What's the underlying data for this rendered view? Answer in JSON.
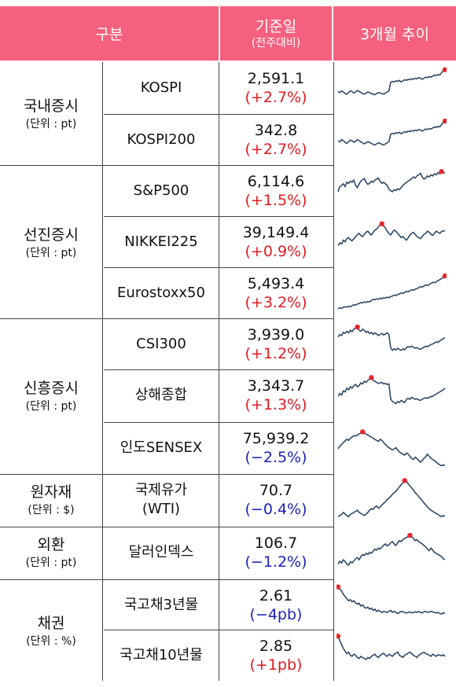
{
  "header": {
    "category": "구분",
    "base_date": "기준일",
    "base_date_sub": "(전주대비)",
    "trend": "3개월 추이"
  },
  "colors": {
    "header_bg": "#f4607e",
    "up": "#e0191f",
    "down": "#1d22b8",
    "sparkline": "#2e4a66",
    "marker": "#e8262c"
  },
  "groups": [
    {
      "name": "국내증시",
      "unit": "(단위 : pt)",
      "rows": [
        {
          "name": "KOSPI",
          "value": "2,591.1",
          "change": "(+2.7%)",
          "dir": "up",
          "trend": [
            35,
            33,
            36,
            34,
            31,
            30,
            33,
            36,
            35,
            32,
            34,
            37,
            35,
            33,
            31,
            30,
            32,
            34,
            33,
            31,
            30,
            29,
            31,
            33,
            32,
            31,
            30,
            32,
            34,
            36,
            52,
            54,
            53,
            55,
            54,
            56,
            53,
            55,
            57,
            56,
            58,
            57,
            59,
            58,
            60,
            59,
            61,
            60,
            58,
            60,
            62,
            61,
            63,
            62,
            64,
            66,
            65,
            67,
            66,
            70,
            74,
            76
          ]
        },
        {
          "name": "KOSPI200",
          "value": "342.8",
          "change": "(+2.7%)",
          "dir": "up",
          "trend": [
            40,
            38,
            42,
            40,
            37,
            35,
            38,
            41,
            40,
            37,
            39,
            42,
            40,
            38,
            36,
            34,
            36,
            38,
            37,
            35,
            33,
            32,
            34,
            36,
            35,
            33,
            32,
            34,
            36,
            38,
            52,
            54,
            53,
            55,
            54,
            56,
            53,
            55,
            57,
            56,
            58,
            57,
            59,
            58,
            60,
            59,
            61,
            60,
            58,
            60,
            62,
            61,
            63,
            62,
            64,
            66,
            65,
            67,
            66,
            70,
            74,
            77
          ]
        }
      ]
    },
    {
      "name": "선진증시",
      "unit": "(단위 : pt)",
      "rows": [
        {
          "name": "S&P500",
          "value": "6,114.6",
          "change": "(+1.5%)",
          "dir": "up",
          "trend": [
            40,
            50,
            52,
            55,
            50,
            58,
            56,
            60,
            58,
            62,
            52,
            48,
            55,
            60,
            63,
            65,
            58,
            54,
            56,
            60,
            58,
            62,
            64,
            66,
            60,
            56,
            58,
            55,
            52,
            45,
            42,
            40,
            44,
            42,
            46,
            44,
            48,
            52,
            55,
            58,
            60,
            62,
            65,
            68,
            66,
            70,
            72,
            75,
            68,
            64,
            66,
            70,
            68,
            72,
            70,
            74,
            72,
            76,
            74,
            78,
            76,
            75
          ]
        },
        {
          "name": "NIKKEI225",
          "value": "39,149.4",
          "change": "(+0.9%)",
          "dir": "up",
          "trend": [
            35,
            40,
            38,
            45,
            42,
            48,
            50,
            46,
            44,
            48,
            52,
            55,
            58,
            54,
            52,
            56,
            60,
            62,
            58,
            55,
            60,
            64,
            66,
            70,
            74,
            76,
            72,
            68,
            62,
            58,
            55,
            60,
            64,
            62,
            58,
            54,
            50,
            52,
            48,
            45,
            50,
            55,
            58,
            60,
            56,
            52,
            50,
            48,
            52,
            56,
            58,
            62,
            60,
            56,
            54,
            58,
            62,
            60,
            58,
            61,
            63,
            62
          ]
        },
        {
          "name": "Eurostoxx50",
          "value": "5,493.4",
          "change": "(+3.2%)",
          "dir": "up",
          "trend": [
            12,
            14,
            13,
            15,
            16,
            15,
            17,
            16,
            18,
            20,
            19,
            21,
            22,
            24,
            23,
            25,
            24,
            26,
            25,
            28,
            30,
            29,
            31,
            30,
            32,
            31,
            33,
            32,
            34,
            33,
            35,
            36,
            38,
            37,
            39,
            40,
            42,
            41,
            43,
            45,
            44,
            46,
            48,
            47,
            49,
            50,
            52,
            54,
            53,
            55,
            57,
            56,
            58,
            60,
            62,
            61,
            63,
            65,
            67,
            69,
            71,
            74
          ]
        }
      ]
    },
    {
      "name": "신흥증시",
      "unit": "(단위 : pt)",
      "rows": [
        {
          "name": "CSI300",
          "value": "3,939.0",
          "change": "(+1.2%)",
          "dir": "up",
          "trend": [
            55,
            60,
            58,
            64,
            62,
            66,
            63,
            68,
            65,
            70,
            72,
            74,
            68,
            66,
            70,
            68,
            64,
            66,
            62,
            64,
            60,
            63,
            61,
            58,
            60,
            62,
            59,
            61,
            63,
            60,
            35,
            30,
            33,
            31,
            34,
            32,
            30,
            33,
            31,
            35,
            37,
            36,
            38,
            36,
            34,
            35,
            33,
            32,
            34,
            36,
            38,
            37,
            39,
            41,
            42,
            44,
            46,
            45,
            48,
            50,
            52,
            54
          ]
        },
        {
          "name": "상해종합",
          "value": "3,343.7",
          "change": "(+1.3%)",
          "dir": "up",
          "trend": [
            40,
            45,
            42,
            50,
            48,
            55,
            52,
            58,
            55,
            60,
            62,
            58,
            60,
            65,
            63,
            68,
            66,
            70,
            72,
            75,
            70,
            68,
            66,
            64,
            65,
            66,
            63,
            64,
            62,
            63,
            35,
            30,
            28,
            26,
            30,
            28,
            32,
            30,
            28,
            34,
            36,
            34,
            38,
            36,
            34,
            35,
            33,
            32,
            34,
            36,
            37,
            36,
            38,
            39,
            40,
            42,
            44,
            46,
            48,
            50,
            52,
            55
          ]
        },
        {
          "name": "인도SENSEX",
          "value": "75,939.2",
          "change": "(−2.5%)",
          "dir": "down",
          "trend": [
            40,
            45,
            48,
            52,
            55,
            58,
            56,
            60,
            62,
            65,
            64,
            66,
            68,
            70,
            72,
            70,
            68,
            66,
            64,
            62,
            60,
            58,
            56,
            54,
            58,
            56,
            52,
            48,
            45,
            42,
            40,
            38,
            40,
            42,
            38,
            34,
            32,
            30,
            28,
            32,
            30,
            26,
            22,
            20,
            24,
            22,
            18,
            15,
            18,
            22,
            25,
            30,
            26,
            22,
            20,
            18,
            15,
            12,
            10,
            8,
            10,
            8
          ]
        }
      ]
    },
    {
      "name": "원자재",
      "unit": "(단위 : $)",
      "rows": [
        {
          "name": "국제유가\n(WTI)",
          "value": "70.7",
          "change": "(−0.4%)",
          "dir": "down",
          "trend": [
            10,
            12,
            14,
            18,
            15,
            12,
            10,
            14,
            16,
            18,
            20,
            22,
            18,
            16,
            14,
            12,
            15,
            18,
            22,
            25,
            24,
            28,
            30,
            26,
            28,
            32,
            35,
            38,
            42,
            45,
            48,
            52,
            55,
            58,
            62,
            66,
            70,
            74,
            78,
            76,
            72,
            68,
            64,
            60,
            55,
            52,
            48,
            44,
            40,
            36,
            32,
            28,
            25,
            22,
            20,
            18,
            16,
            14,
            12,
            10,
            12,
            11
          ]
        }
      ]
    },
    {
      "name": "외환",
      "unit": "(단위 : pt)",
      "rows": [
        {
          "name": "달러인덱스",
          "value": "106.7",
          "change": "(−1.2%)",
          "dir": "down",
          "trend": [
            20,
            25,
            22,
            28,
            25,
            20,
            18,
            24,
            22,
            26,
            30,
            32,
            28,
            34,
            38,
            36,
            40,
            38,
            42,
            40,
            44,
            48,
            46,
            50,
            48,
            52,
            55,
            58,
            54,
            56,
            60,
            62,
            58,
            55,
            60,
            64,
            62,
            66,
            68,
            70,
            72,
            74,
            72,
            68,
            64,
            66,
            62,
            60,
            58,
            55,
            52,
            48,
            45,
            50,
            46,
            42,
            40,
            38,
            36,
            34,
            30,
            28
          ]
        }
      ]
    },
    {
      "name": "채권",
      "unit": "(단위 : %)",
      "rows": [
        {
          "name": "국고채3년물",
          "value": "2.61",
          "change": "(−4pb)",
          "dir": "down",
          "trend": [
            76,
            72,
            68,
            62,
            58,
            54,
            50,
            52,
            48,
            50,
            46,
            44,
            45,
            40,
            42,
            38,
            36,
            38,
            34,
            36,
            32,
            34,
            30,
            32,
            30,
            28,
            30,
            29,
            28,
            30,
            32,
            28,
            30,
            28,
            26,
            28,
            30,
            29,
            28,
            27,
            28,
            29,
            27,
            28,
            29,
            28,
            30,
            28,
            27,
            29,
            30,
            28,
            29,
            30,
            29,
            28,
            27,
            28,
            26,
            25,
            27,
            26
          ]
        },
        {
          "name": "국고채10년물",
          "value": "2.85",
          "change": "(+1pb)",
          "dir": "up",
          "trend": [
            78,
            70,
            62,
            55,
            50,
            45,
            48,
            42,
            40,
            44,
            42,
            38,
            36,
            40,
            38,
            36,
            34,
            38,
            36,
            40,
            42,
            44,
            40,
            38,
            42,
            44,
            46,
            42,
            40,
            44,
            42,
            40,
            44,
            46,
            48,
            42,
            40,
            38,
            42,
            44,
            46,
            48,
            45,
            42,
            40,
            38,
            42,
            44,
            46,
            48,
            45,
            44,
            42,
            40,
            44,
            42,
            40,
            43,
            42,
            41,
            43,
            40
          ]
        }
      ]
    }
  ]
}
